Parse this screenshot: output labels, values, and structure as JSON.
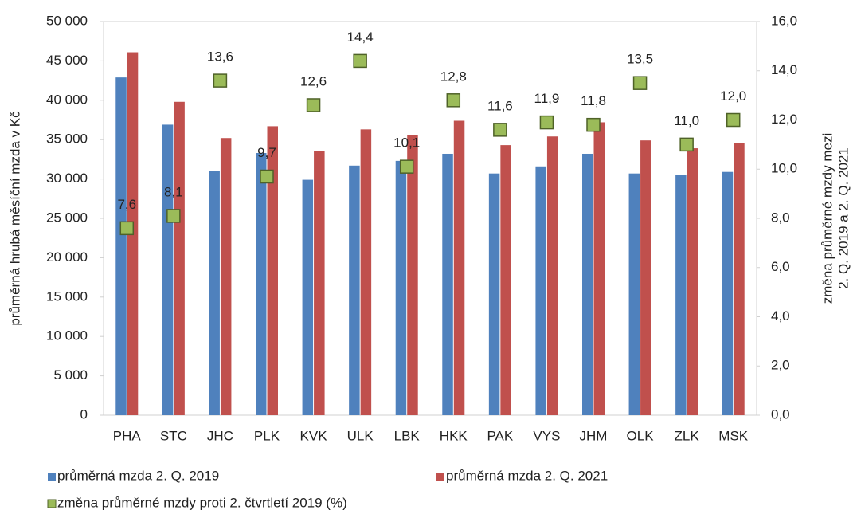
{
  "chart_data": {
    "type": "bar",
    "y_label": "průměrná hrubá měsíční mzda v Kč",
    "y2_label": [
      "změna  průměrné mzdy mezi",
      "2. Q.  2019 a 2. Q. 2021"
    ],
    "categories": [
      "PHA",
      "STC",
      "JHC",
      "PLK",
      "KVK",
      "ULK",
      "LBK",
      "HKK",
      "PAK",
      "VYS",
      "JHM",
      "OLK",
      "ZLK",
      "MSK"
    ],
    "series": [
      {
        "name": "průměrná mzda 2. Q. 2019",
        "color": "#4f81bd",
        "type": "bar",
        "values": [
          42900,
          36900,
          31000,
          33300,
          29900,
          31700,
          32300,
          33200,
          30700,
          31600,
          33200,
          30700,
          30500,
          30900
        ]
      },
      {
        "name": "průměrná mzda 2. Q. 2021",
        "color": "#c0504d",
        "type": "bar",
        "values": [
          46100,
          39800,
          35200,
          36700,
          33600,
          36300,
          35600,
          37400,
          34300,
          35400,
          37200,
          34900,
          33900,
          34600
        ]
      },
      {
        "name": "změna průměrné mzdy proti 2. čtvrtletí 2019 (%)",
        "color": "#9bbb59",
        "type": "marker",
        "axis": "y2",
        "values": [
          7.6,
          8.1,
          13.6,
          9.7,
          12.6,
          14.4,
          10.1,
          12.8,
          11.6,
          11.9,
          11.8,
          13.5,
          11.0,
          12.0
        ],
        "value_labels": [
          "7,6",
          "8,1",
          "13,6",
          "9,7",
          "12,6",
          "14,4",
          "10,1",
          "12,8",
          "11,6",
          "11,9",
          "11,8",
          "13,5",
          "11,0",
          "12,0"
        ]
      }
    ],
    "ylim": [
      0,
      50000
    ],
    "yticks": [
      0,
      {
        "value": 5000,
        "label": "5 000"
      },
      {
        "value": 10000,
        "label": "10 000"
      },
      {
        "value": 15000,
        "label": "15 000"
      },
      {
        "value": 20000,
        "label": "20 000"
      },
      {
        "value": 25000,
        "label": "25 000"
      },
      {
        "value": 30000,
        "label": "30 000"
      },
      {
        "value": 35000,
        "label": "35 000"
      },
      {
        "value": 40000,
        "label": "40 000"
      },
      {
        "value": 45000,
        "label": "45 000"
      },
      {
        "value": 50000,
        "label": "50 000"
      }
    ],
    "y2lim": [
      0,
      16
    ],
    "y2ticks": [
      {
        "value": 0,
        "label": "0,0"
      },
      {
        "value": 2,
        "label": "2,0"
      },
      {
        "value": 4,
        "label": "4,0"
      },
      {
        "value": 6,
        "label": "6,0"
      },
      {
        "value": 8,
        "label": "8,0"
      },
      {
        "value": 10,
        "label": "10,0"
      },
      {
        "value": 12,
        "label": "12,0"
      },
      {
        "value": 14,
        "label": "14,0"
      },
      {
        "value": 16,
        "label": "16,0"
      }
    ],
    "grid": false,
    "legend": "bottom"
  }
}
